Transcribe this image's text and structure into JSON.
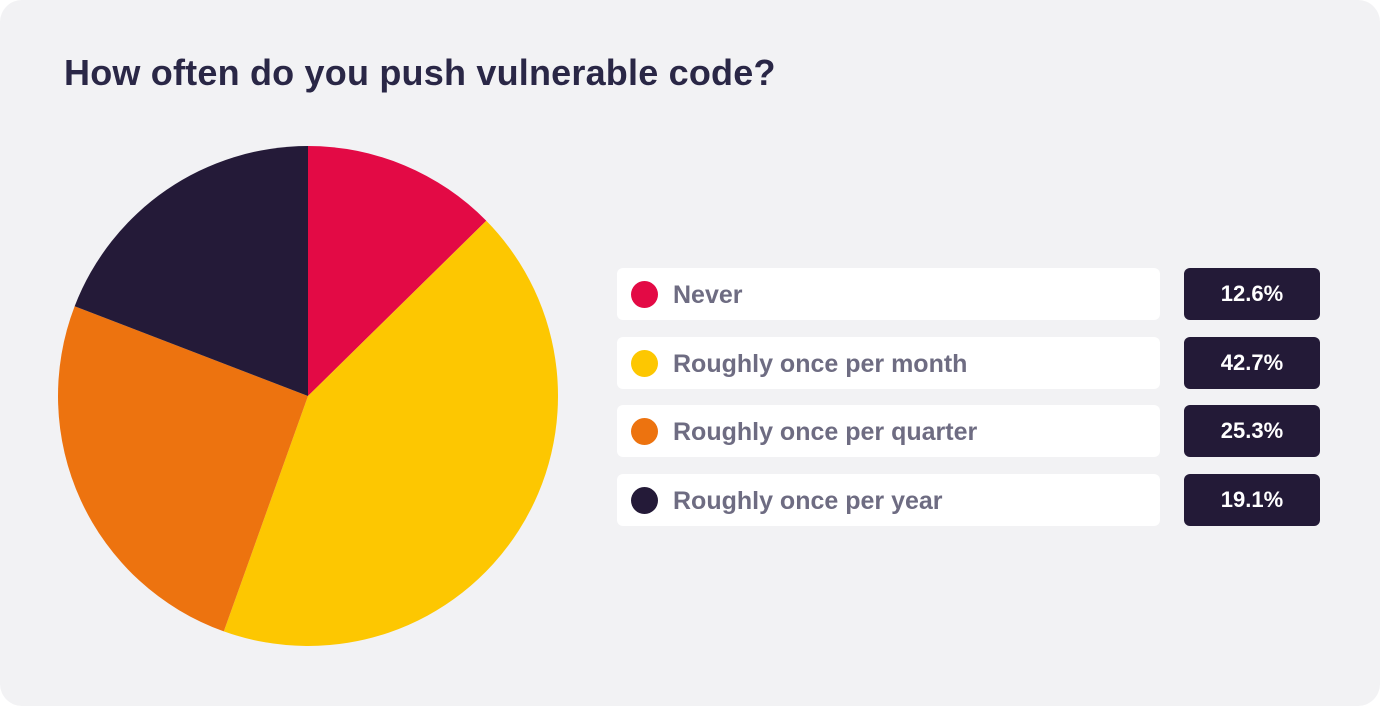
{
  "chart_data": {
    "type": "pie",
    "title": "How often do you push vulnerable code?",
    "categories": [
      "Never",
      "Roughly once per month",
      "Roughly once per quarter",
      "Roughly once per year"
    ],
    "values": [
      12.6,
      42.7,
      25.3,
      19.1
    ],
    "value_labels": [
      "12.6%",
      "42.7%",
      "25.3%",
      "19.1%"
    ],
    "colors": [
      "#e30a45",
      "#fdc701",
      "#ed730f",
      "#241a38"
    ],
    "start_angle_deg": 0,
    "direction": "clockwise",
    "legend_position": "right"
  }
}
